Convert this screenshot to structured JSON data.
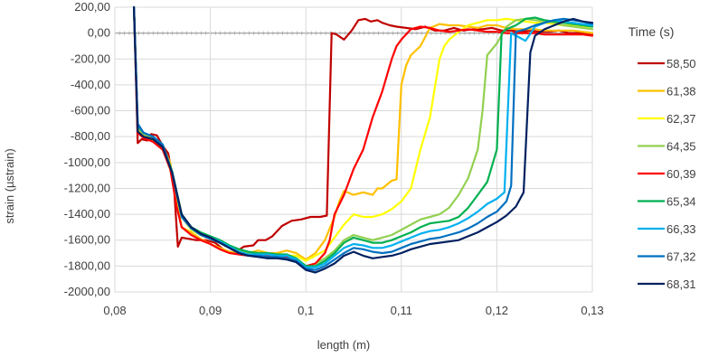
{
  "chart_data": {
    "type": "line",
    "title": "",
    "xlabel": "length (m)",
    "ylabel": "strain (µstrain)",
    "xlim": [
      0.08,
      0.13
    ],
    "ylim": [
      -2000,
      200
    ],
    "x_ticks": [
      0.08,
      0.09,
      0.1,
      0.11,
      0.12,
      0.13
    ],
    "x_tick_labels": [
      "0,08",
      "0,09",
      "0,1",
      "0,11",
      "0,12",
      "0,13"
    ],
    "y_ticks": [
      200,
      0,
      -200,
      -400,
      -600,
      -800,
      -1000,
      -1200,
      -1400,
      -1600,
      -1800,
      -2000
    ],
    "y_tick_labels": [
      "200,00",
      "0,00",
      "-200,00",
      "-400,00",
      "-600,00",
      "-800,00",
      "-1000,00",
      "-1200,00",
      "-1400,00",
      "-1600,00",
      "-1800,00",
      "-2000,00"
    ],
    "grid": {
      "x": true,
      "y": true
    },
    "legend": {
      "title": "Time (s)",
      "position": "right"
    },
    "series": [
      {
        "name": "58,50",
        "color": "#c00000",
        "x": [
          0.082,
          0.0824,
          0.0828,
          0.0834,
          0.0838,
          0.0844,
          0.085,
          0.0856,
          0.0862,
          0.0866,
          0.087,
          0.0878,
          0.0885,
          0.0895,
          0.0905,
          0.0915,
          0.0925,
          0.0935,
          0.0945,
          0.095,
          0.0958,
          0.0965,
          0.0975,
          0.0985,
          0.0995,
          0.1005,
          0.1015,
          0.1022,
          0.1027,
          0.1032,
          0.104,
          0.1048,
          0.1055,
          0.1062,
          0.1068,
          0.1075,
          0.108,
          0.1088,
          0.1095,
          0.1105,
          0.1115,
          0.1125,
          0.1135,
          0.1145,
          0.1155,
          0.1165,
          0.1175,
          0.1185,
          0.1195,
          0.1205,
          0.1215,
          0.1225,
          0.1235,
          0.1245,
          0.1255,
          0.1265,
          0.1275,
          0.1285,
          0.1295,
          0.13
        ],
        "y": [
          200,
          -850,
          -820,
          -830,
          -780,
          -790,
          -870,
          -930,
          -1200,
          -1650,
          -1580,
          -1590,
          -1600,
          -1600,
          -1620,
          -1680,
          -1700,
          -1650,
          -1640,
          -1600,
          -1600,
          -1570,
          -1490,
          -1450,
          -1440,
          -1420,
          -1420,
          -1410,
          0,
          -10,
          -50,
          20,
          100,
          110,
          90,
          100,
          80,
          60,
          50,
          40,
          30,
          50,
          20,
          20,
          40,
          20,
          30,
          30,
          40,
          20,
          20,
          10,
          20,
          10,
          10,
          20,
          0,
          0,
          0,
          -10
        ]
      },
      {
        "name": "61,38",
        "color": "#ffc000",
        "x": [
          0.082,
          0.0824,
          0.083,
          0.084,
          0.085,
          0.0858,
          0.0865,
          0.087,
          0.088,
          0.089,
          0.09,
          0.091,
          0.092,
          0.093,
          0.094,
          0.095,
          0.096,
          0.097,
          0.098,
          0.099,
          0.1,
          0.101,
          0.102,
          0.103,
          0.1035,
          0.104,
          0.105,
          0.106,
          0.107,
          0.1075,
          0.108,
          0.109,
          0.1095,
          0.11,
          0.1105,
          0.111,
          0.112,
          0.113,
          0.114,
          0.115,
          0.116,
          0.117,
          0.118,
          0.119,
          0.12,
          0.121,
          0.122,
          0.123,
          0.124,
          0.125,
          0.126,
          0.127,
          0.128,
          0.129,
          0.13
        ],
        "y": [
          200,
          -750,
          -800,
          -830,
          -880,
          -1000,
          -1300,
          -1500,
          -1540,
          -1590,
          -1630,
          -1660,
          -1690,
          -1700,
          -1700,
          -1680,
          -1700,
          -1700,
          -1680,
          -1700,
          -1750,
          -1700,
          -1600,
          -1420,
          -1300,
          -1220,
          -1250,
          -1230,
          -1250,
          -1200,
          -1200,
          -1140,
          -1130,
          -400,
          -250,
          -170,
          -100,
          40,
          70,
          60,
          60,
          50,
          40,
          60,
          60,
          40,
          30,
          30,
          30,
          20,
          20,
          20,
          20,
          10,
          0
        ]
      },
      {
        "name": "62,37",
        "color": "#ffff00",
        "x": [
          0.082,
          0.0824,
          0.083,
          0.084,
          0.085,
          0.086,
          0.087,
          0.088,
          0.089,
          0.09,
          0.091,
          0.092,
          0.093,
          0.094,
          0.095,
          0.096,
          0.097,
          0.098,
          0.099,
          0.1,
          0.101,
          0.102,
          0.103,
          0.104,
          0.105,
          0.106,
          0.107,
          0.108,
          0.109,
          0.11,
          0.111,
          0.112,
          0.113,
          0.114,
          0.1145,
          0.115,
          0.116,
          0.117,
          0.118,
          0.119,
          0.12,
          0.121,
          0.122,
          0.123,
          0.124,
          0.125,
          0.126,
          0.127,
          0.128,
          0.129,
          0.13
        ],
        "y": [
          200,
          -740,
          -790,
          -820,
          -880,
          -1100,
          -1420,
          -1520,
          -1560,
          -1590,
          -1620,
          -1660,
          -1690,
          -1700,
          -1710,
          -1710,
          -1720,
          -1720,
          -1720,
          -1760,
          -1720,
          -1680,
          -1580,
          -1480,
          -1400,
          -1420,
          -1420,
          -1400,
          -1360,
          -1300,
          -1200,
          -900,
          -650,
          -200,
          -100,
          -50,
          10,
          60,
          80,
          100,
          100,
          110,
          100,
          90,
          80,
          80,
          70,
          60,
          60,
          50,
          50
        ]
      },
      {
        "name": "64,35",
        "color": "#92d050",
        "x": [
          0.082,
          0.0824,
          0.083,
          0.084,
          0.085,
          0.086,
          0.087,
          0.088,
          0.089,
          0.09,
          0.091,
          0.092,
          0.093,
          0.094,
          0.095,
          0.096,
          0.097,
          0.098,
          0.099,
          0.1,
          0.101,
          0.102,
          0.103,
          0.104,
          0.105,
          0.106,
          0.107,
          0.108,
          0.109,
          0.11,
          0.111,
          0.112,
          0.113,
          0.114,
          0.115,
          0.116,
          0.117,
          0.118,
          0.1185,
          0.119,
          0.12,
          0.121,
          0.122,
          0.123,
          0.124,
          0.125,
          0.126,
          0.127,
          0.128,
          0.129,
          0.13
        ],
        "y": [
          200,
          -730,
          -780,
          -810,
          -870,
          -1080,
          -1400,
          -1510,
          -1550,
          -1580,
          -1610,
          -1650,
          -1680,
          -1700,
          -1710,
          -1700,
          -1710,
          -1720,
          -1740,
          -1800,
          -1780,
          -1740,
          -1680,
          -1600,
          -1560,
          -1580,
          -1600,
          -1580,
          -1560,
          -1520,
          -1480,
          -1440,
          -1420,
          -1400,
          -1350,
          -1250,
          -1120,
          -900,
          -600,
          -170,
          -80,
          50,
          100,
          110,
          100,
          90,
          80,
          60,
          50,
          40,
          30
        ]
      },
      {
        "name": "60,39",
        "color": "#ff0000",
        "x": [
          0.082,
          0.0824,
          0.083,
          0.084,
          0.085,
          0.0858,
          0.0865,
          0.087,
          0.088,
          0.089,
          0.09,
          0.091,
          0.092,
          0.093,
          0.094,
          0.095,
          0.096,
          0.097,
          0.098,
          0.099,
          0.1,
          0.101,
          0.102,
          0.1025,
          0.103,
          0.104,
          0.105,
          0.106,
          0.107,
          0.108,
          0.109,
          0.1095,
          0.11,
          0.111,
          0.112,
          0.113,
          0.114,
          0.115,
          0.116,
          0.117,
          0.118,
          0.119,
          0.12,
          0.121,
          0.122,
          0.123,
          0.124,
          0.125,
          0.126,
          0.127,
          0.128,
          0.129,
          0.13
        ],
        "y": [
          200,
          -770,
          -810,
          -840,
          -900,
          -1050,
          -1350,
          -1500,
          -1560,
          -1600,
          -1630,
          -1670,
          -1700,
          -1710,
          -1720,
          -1710,
          -1720,
          -1720,
          -1730,
          -1760,
          -1800,
          -1780,
          -1700,
          -1600,
          -1400,
          -1250,
          -1050,
          -900,
          -650,
          -450,
          -200,
          -100,
          -50,
          30,
          50,
          40,
          20,
          10,
          20,
          30,
          20,
          10,
          10,
          0,
          0,
          0,
          0,
          -10,
          -10,
          -10,
          -10,
          -10,
          -20
        ]
      },
      {
        "name": "65,34",
        "color": "#00b050",
        "x": [
          0.082,
          0.0824,
          0.083,
          0.084,
          0.085,
          0.086,
          0.087,
          0.088,
          0.089,
          0.09,
          0.091,
          0.092,
          0.093,
          0.094,
          0.095,
          0.096,
          0.097,
          0.098,
          0.099,
          0.1,
          0.101,
          0.102,
          0.103,
          0.104,
          0.105,
          0.106,
          0.107,
          0.108,
          0.109,
          0.11,
          0.111,
          0.112,
          0.113,
          0.114,
          0.115,
          0.116,
          0.117,
          0.118,
          0.119,
          0.12,
          0.1205,
          0.121,
          0.122,
          0.123,
          0.124,
          0.125,
          0.126,
          0.127,
          0.128,
          0.129,
          0.13
        ],
        "y": [
          200,
          -720,
          -770,
          -800,
          -860,
          -1070,
          -1400,
          -1500,
          -1540,
          -1570,
          -1600,
          -1640,
          -1670,
          -1690,
          -1700,
          -1700,
          -1710,
          -1710,
          -1740,
          -1800,
          -1800,
          -1760,
          -1700,
          -1620,
          -1580,
          -1600,
          -1620,
          -1620,
          -1600,
          -1570,
          -1540,
          -1500,
          -1470,
          -1460,
          -1450,
          -1420,
          -1350,
          -1250,
          -1150,
          -900,
          0,
          30,
          60,
          110,
          120,
          100,
          90,
          80,
          70,
          60,
          50
        ]
      },
      {
        "name": "66,33",
        "color": "#00b0f0",
        "x": [
          0.082,
          0.0824,
          0.083,
          0.084,
          0.085,
          0.086,
          0.087,
          0.088,
          0.089,
          0.09,
          0.091,
          0.092,
          0.093,
          0.094,
          0.095,
          0.096,
          0.097,
          0.098,
          0.099,
          0.1,
          0.101,
          0.102,
          0.103,
          0.104,
          0.105,
          0.106,
          0.107,
          0.108,
          0.109,
          0.11,
          0.111,
          0.112,
          0.113,
          0.114,
          0.115,
          0.116,
          0.117,
          0.118,
          0.119,
          0.12,
          0.1208,
          0.1215,
          0.122,
          0.123,
          0.124,
          0.125,
          0.126,
          0.127,
          0.128,
          0.129,
          0.13
        ],
        "y": [
          200,
          -710,
          -770,
          -800,
          -860,
          -1080,
          -1420,
          -1510,
          -1550,
          -1580,
          -1610,
          -1650,
          -1690,
          -1710,
          -1710,
          -1710,
          -1720,
          -1720,
          -1750,
          -1810,
          -1810,
          -1780,
          -1720,
          -1660,
          -1630,
          -1640,
          -1660,
          -1660,
          -1640,
          -1610,
          -1580,
          -1550,
          -1530,
          -1520,
          -1500,
          -1470,
          -1430,
          -1380,
          -1320,
          -1280,
          -1230,
          0,
          -20,
          -60,
          50,
          80,
          100,
          90,
          80,
          70,
          60
        ]
      },
      {
        "name": "67,32",
        "color": "#0070c0",
        "x": [
          0.082,
          0.0824,
          0.083,
          0.084,
          0.085,
          0.086,
          0.087,
          0.088,
          0.089,
          0.09,
          0.091,
          0.092,
          0.093,
          0.094,
          0.095,
          0.096,
          0.097,
          0.098,
          0.099,
          0.1,
          0.101,
          0.102,
          0.103,
          0.104,
          0.105,
          0.106,
          0.107,
          0.108,
          0.109,
          0.11,
          0.111,
          0.112,
          0.113,
          0.114,
          0.115,
          0.116,
          0.117,
          0.118,
          0.119,
          0.12,
          0.121,
          0.1215,
          0.122,
          0.123,
          0.124,
          0.125,
          0.126,
          0.127,
          0.128,
          0.129,
          0.13
        ],
        "y": [
          200,
          -700,
          -770,
          -800,
          -860,
          -1080,
          -1420,
          -1510,
          -1560,
          -1590,
          -1620,
          -1660,
          -1700,
          -1720,
          -1720,
          -1730,
          -1730,
          -1740,
          -1760,
          -1820,
          -1830,
          -1800,
          -1750,
          -1700,
          -1660,
          -1670,
          -1690,
          -1700,
          -1690,
          -1660,
          -1630,
          -1610,
          -1590,
          -1580,
          -1560,
          -1540,
          -1510,
          -1470,
          -1420,
          -1380,
          -1300,
          -1180,
          10,
          30,
          60,
          80,
          100,
          110,
          100,
          90,
          70
        ]
      },
      {
        "name": "68,31",
        "color": "#002060",
        "x": [
          0.082,
          0.0824,
          0.083,
          0.084,
          0.085,
          0.086,
          0.087,
          0.088,
          0.089,
          0.09,
          0.091,
          0.092,
          0.093,
          0.094,
          0.095,
          0.096,
          0.097,
          0.098,
          0.099,
          0.1,
          0.101,
          0.102,
          0.103,
          0.104,
          0.105,
          0.106,
          0.107,
          0.108,
          0.109,
          0.11,
          0.111,
          0.112,
          0.113,
          0.114,
          0.115,
          0.116,
          0.117,
          0.118,
          0.119,
          0.12,
          0.121,
          0.122,
          0.1228,
          0.1235,
          0.124,
          0.125,
          0.126,
          0.127,
          0.128,
          0.129,
          0.13
        ],
        "y": [
          200,
          -760,
          -800,
          -820,
          -880,
          -1080,
          -1400,
          -1500,
          -1550,
          -1580,
          -1620,
          -1660,
          -1700,
          -1720,
          -1730,
          -1740,
          -1740,
          -1750,
          -1770,
          -1830,
          -1850,
          -1820,
          -1780,
          -1720,
          -1690,
          -1720,
          -1740,
          -1730,
          -1720,
          -1700,
          -1670,
          -1650,
          -1630,
          -1620,
          -1610,
          -1600,
          -1570,
          -1540,
          -1500,
          -1460,
          -1410,
          -1340,
          -1230,
          -150,
          -20,
          30,
          60,
          90,
          110,
          90,
          80
        ]
      }
    ]
  }
}
